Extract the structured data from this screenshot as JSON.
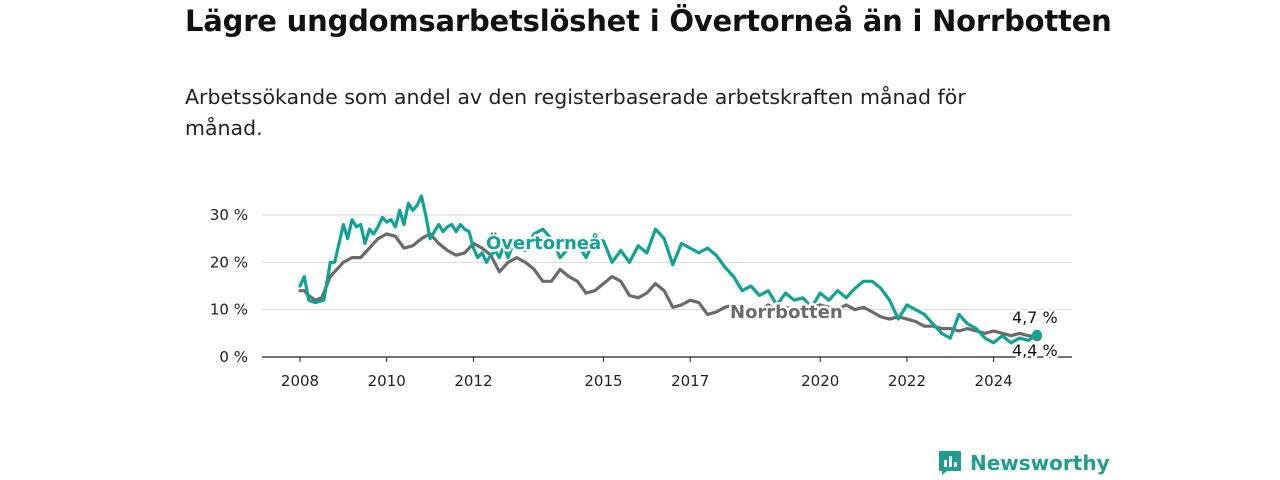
{
  "title": "Lägre ungdomsarbetslöshet i Övertorneå än i Norrbotten",
  "subtitle": "Arbetssökande som andel av den registerbaserade arbetskraften månad för månad.",
  "brand": "Newsworthy",
  "colors": {
    "overtornea": "#0fa295",
    "norrbotten": "#6b6b6b",
    "grid": "#d9d9d9",
    "brand": "#1e9e8f"
  },
  "chart_data": {
    "type": "line",
    "ylim": [
      0,
      30
    ],
    "yticks": [
      0,
      10,
      20,
      30
    ],
    "ytick_labels": [
      "0 %",
      "10 %",
      "20 %",
      "30 %"
    ],
    "xticks": [
      2008,
      2010,
      2012,
      2015,
      2017,
      2020,
      2022,
      2024
    ],
    "xtick_labels": [
      "2008",
      "2010",
      "2012",
      "2015",
      "2017",
      "2020",
      "2022",
      "2024"
    ],
    "grid": true,
    "series": [
      {
        "name": "Övertorneå",
        "end_label": "4,7 %",
        "x": [
          2008.0,
          2008.1,
          2008.2,
          2008.35,
          2008.55,
          2008.7,
          2008.8,
          2009.0,
          2009.1,
          2009.2,
          2009.3,
          2009.4,
          2009.5,
          2009.6,
          2009.7,
          2009.8,
          2009.9,
          2010.0,
          2010.1,
          2010.2,
          2010.3,
          2010.4,
          2010.5,
          2010.6,
          2010.7,
          2010.8,
          2010.9,
          2011.0,
          2011.1,
          2011.2,
          2011.3,
          2011.4,
          2011.5,
          2011.6,
          2011.7,
          2011.8,
          2011.9,
          2012.0,
          2012.1,
          2012.2,
          2012.3,
          2012.4,
          2012.5,
          2012.6,
          2012.7,
          2012.8,
          2012.9,
          2013.0,
          2013.2,
          2013.4,
          2013.6,
          2013.8,
          2014.0,
          2014.2,
          2014.4,
          2014.6,
          2014.8,
          2015.0,
          2015.2,
          2015.4,
          2015.6,
          2015.8,
          2016.0,
          2016.2,
          2016.4,
          2016.6,
          2016.8,
          2017.0,
          2017.2,
          2017.4,
          2017.6,
          2017.8,
          2018.0,
          2018.2,
          2018.4,
          2018.6,
          2018.8,
          2019.0,
          2019.2,
          2019.4,
          2019.6,
          2019.8,
          2020.0,
          2020.2,
          2020.4,
          2020.6,
          2020.8,
          2021.0,
          2021.2,
          2021.4,
          2021.6,
          2021.8,
          2022.0,
          2022.2,
          2022.4,
          2022.6,
          2022.8,
          2023.0,
          2023.2,
          2023.4,
          2023.6,
          2023.8,
          2024.0,
          2024.2,
          2024.4,
          2024.6,
          2024.8,
          2025.0
        ],
        "y": [
          15.0,
          17.0,
          12.0,
          11.5,
          12.0,
          20.0,
          20.0,
          28.0,
          25.0,
          29.0,
          27.5,
          28.0,
          24.0,
          27.0,
          26.0,
          27.5,
          29.5,
          28.5,
          29.0,
          27.5,
          31.0,
          28.0,
          32.5,
          31.0,
          32.0,
          34.0,
          30.0,
          25.0,
          26.5,
          28.0,
          26.5,
          27.5,
          28.0,
          26.5,
          28.0,
          27.0,
          26.5,
          23.0,
          21.0,
          22.0,
          20.0,
          21.5,
          22.5,
          21.0,
          23.5,
          21.0,
          23.5,
          24.0,
          22.5,
          26.0,
          27.0,
          25.0,
          21.0,
          23.0,
          24.0,
          21.0,
          25.0,
          24.5,
          20.0,
          22.5,
          20.0,
          23.5,
          22.0,
          27.0,
          25.0,
          19.5,
          24.0,
          23.0,
          22.0,
          23.0,
          21.5,
          19.0,
          17.0,
          14.0,
          15.0,
          13.0,
          14.0,
          11.0,
          13.5,
          12.0,
          12.5,
          10.5,
          13.5,
          12.0,
          14.0,
          12.5,
          14.5,
          16.0,
          16.0,
          14.5,
          12.0,
          8.0,
          11.0,
          10.0,
          9.0,
          7.0,
          5.0,
          4.0,
          9.0,
          7.0,
          6.0,
          4.0,
          3.0,
          4.5,
          3.0,
          4.0,
          3.5,
          4.7
        ]
      },
      {
        "name": "Norrbotten",
        "end_label": "4,4 %",
        "x": [
          2008.0,
          2008.1,
          2008.2,
          2008.35,
          2008.5,
          2008.7,
          2008.9,
          2009.0,
          2009.2,
          2009.4,
          2009.6,
          2009.8,
          2010.0,
          2010.2,
          2010.4,
          2010.6,
          2010.8,
          2011.0,
          2011.2,
          2011.4,
          2011.6,
          2011.8,
          2012.0,
          2012.2,
          2012.4,
          2012.6,
          2012.8,
          2013.0,
          2013.2,
          2013.4,
          2013.6,
          2013.8,
          2014.0,
          2014.2,
          2014.4,
          2014.6,
          2014.8,
          2015.0,
          2015.2,
          2015.4,
          2015.6,
          2015.8,
          2016.0,
          2016.2,
          2016.4,
          2016.6,
          2016.8,
          2017.0,
          2017.2,
          2017.4,
          2017.6,
          2017.8,
          2018.0,
          2018.2,
          2018.4,
          2018.6,
          2018.8,
          2019.0,
          2019.2,
          2019.4,
          2019.6,
          2019.8,
          2020.0,
          2020.2,
          2020.4,
          2020.6,
          2020.8,
          2021.0,
          2021.2,
          2021.4,
          2021.6,
          2021.8,
          2022.0,
          2022.2,
          2022.4,
          2022.6,
          2022.8,
          2023.0,
          2023.2,
          2023.4,
          2023.6,
          2023.8,
          2024.0,
          2024.2,
          2024.4,
          2024.6,
          2024.8,
          2025.0
        ],
        "y": [
          14.0,
          14.0,
          13.0,
          12.0,
          12.5,
          17.0,
          19.0,
          20.0,
          21.0,
          21.0,
          23.0,
          25.0,
          26.0,
          25.5,
          23.0,
          23.5,
          25.0,
          26.0,
          24.0,
          22.5,
          21.5,
          22.0,
          24.0,
          23.0,
          21.5,
          18.0,
          20.0,
          21.0,
          20.0,
          18.5,
          16.0,
          16.0,
          18.5,
          17.0,
          16.0,
          13.5,
          14.0,
          15.5,
          17.0,
          16.0,
          13.0,
          12.5,
          13.5,
          15.5,
          14.0,
          10.5,
          11.0,
          12.0,
          11.5,
          9.0,
          9.5,
          10.5,
          11.0,
          10.0,
          10.5,
          10.0,
          11.0,
          10.0,
          10.5,
          10.0,
          10.0,
          10.5,
          11.0,
          10.5,
          10.0,
          11.0,
          10.0,
          10.5,
          9.5,
          8.5,
          8.0,
          8.5,
          8.0,
          7.5,
          6.5,
          6.5,
          6.0,
          6.0,
          5.5,
          6.0,
          5.5,
          5.0,
          5.5,
          5.0,
          4.5,
          5.0,
          4.5,
          4.4
        ]
      }
    ]
  }
}
